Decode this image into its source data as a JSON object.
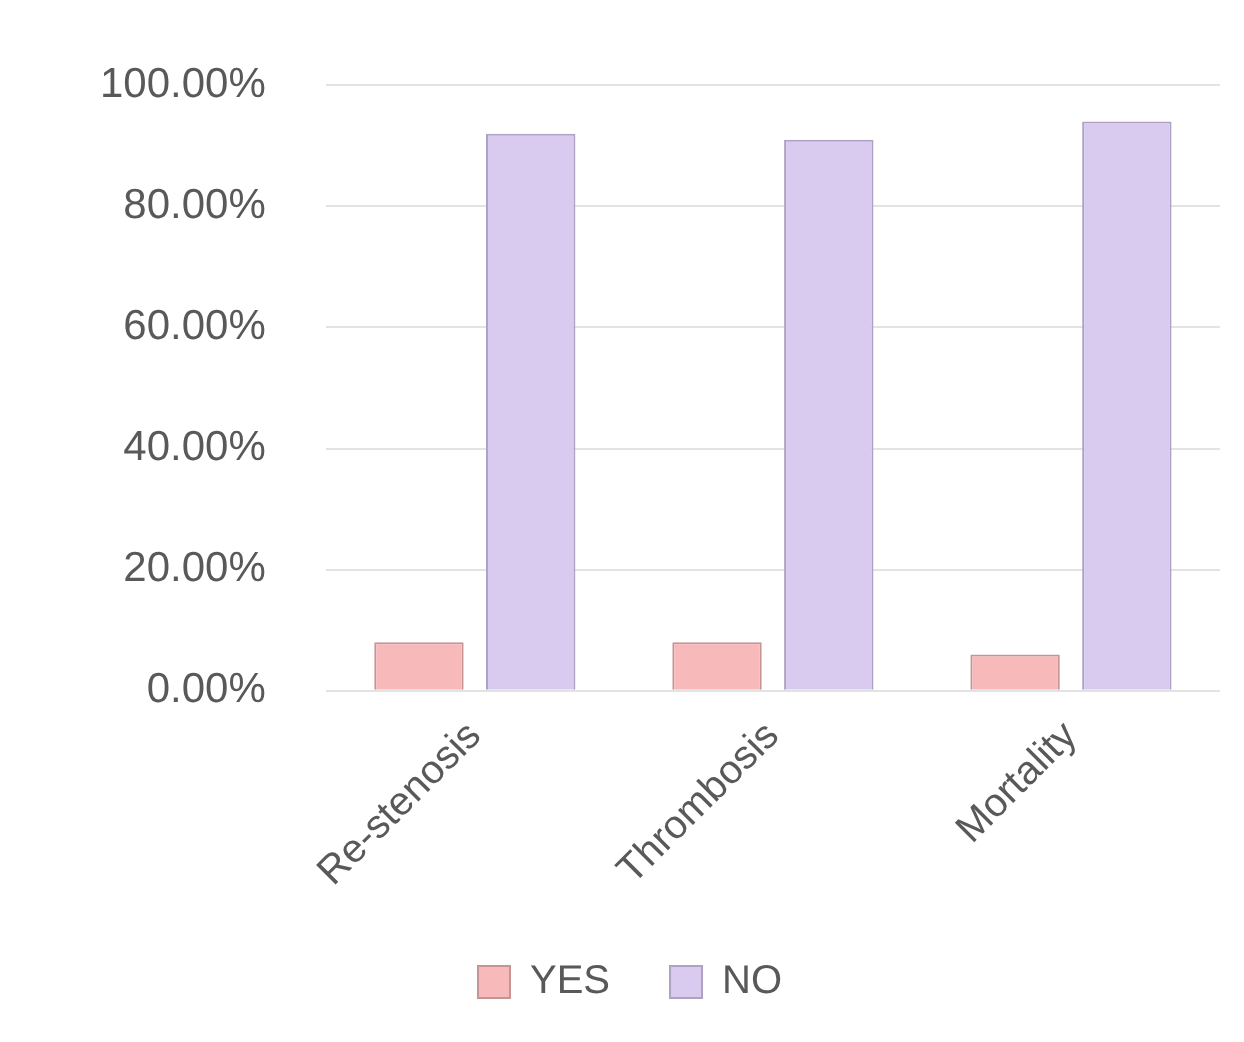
{
  "chart_data": {
    "type": "bar",
    "categories": [
      "Re-stenosis",
      "Thrombosis",
      "Mortality"
    ],
    "series": [
      {
        "name": "YES",
        "color": "#f7b9b9",
        "values": [
          8,
          8,
          6
        ]
      },
      {
        "name": "NO",
        "color": "#d9cbf0",
        "values": [
          92,
          91,
          94
        ]
      }
    ],
    "ylim": [
      0,
      100
    ],
    "yticks": [
      {
        "value": 0,
        "label": "0.00%"
      },
      {
        "value": 20,
        "label": "20.00%"
      },
      {
        "value": 40,
        "label": "40.00%"
      },
      {
        "value": 60,
        "label": "60.00%"
      },
      {
        "value": 80,
        "label": "80.00%"
      },
      {
        "value": 100,
        "label": "100.00%"
      }
    ],
    "grid": "y",
    "legend": "bottom"
  }
}
